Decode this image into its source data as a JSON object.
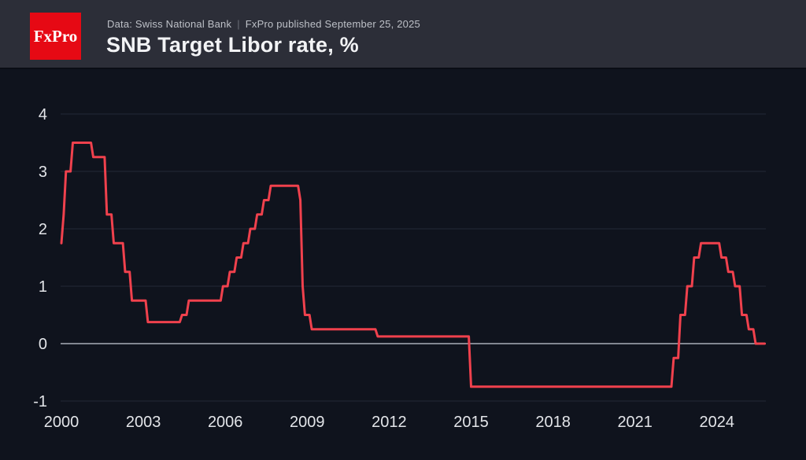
{
  "header": {
    "logo_text": "FxPro",
    "logo_bg": "#e60914",
    "data_source": "Data: Swiss National Bank",
    "separator": "|",
    "published": "FxPro published September 25, 2025"
  },
  "chart_data": {
    "type": "line",
    "title": "SNB Target Libor rate, %",
    "xlabel": "",
    "ylabel": "",
    "unit": "%",
    "x_ticks": [
      2000,
      2003,
      2006,
      2009,
      2012,
      2015,
      2018,
      2021,
      2024
    ],
    "y_ticks": [
      4,
      3,
      2,
      1,
      0,
      -1
    ],
    "xlim": [
      2000,
      2025.83
    ],
    "ylim": [
      -1.4,
      4.5
    ],
    "grid": true,
    "legend_position": "none",
    "line_color": "#f0414d",
    "grid_color": "#232938",
    "zero_line_color": "#a9aeb8",
    "tick_label_color": "#e3e5e9",
    "sampling": "monthly step series; value holds until next change",
    "rate_changes": [
      [
        "2000-01",
        1.75
      ],
      [
        "2000-02",
        2.25
      ],
      [
        "2000-03",
        3.0
      ],
      [
        "2000-06",
        3.5
      ],
      [
        "2001-03",
        3.25
      ],
      [
        "2001-09",
        2.25
      ],
      [
        "2001-12",
        1.75
      ],
      [
        "2002-05",
        1.25
      ],
      [
        "2002-08",
        0.75
      ],
      [
        "2003-03",
        0.375
      ],
      [
        "2004-06",
        0.5
      ],
      [
        "2004-09",
        0.75
      ],
      [
        "2005-12",
        1.0
      ],
      [
        "2006-03",
        1.25
      ],
      [
        "2006-06",
        1.5
      ],
      [
        "2006-09",
        1.75
      ],
      [
        "2006-12",
        2.0
      ],
      [
        "2007-03",
        2.25
      ],
      [
        "2007-06",
        2.5
      ],
      [
        "2007-09",
        2.75
      ],
      [
        "2008-10",
        2.5
      ],
      [
        "2008-11",
        1.0
      ],
      [
        "2008-12",
        0.5
      ],
      [
        "2009-03",
        0.25
      ],
      [
        "2011-08",
        0.125
      ],
      [
        "2015-01",
        -0.75
      ],
      [
        "2022-06",
        -0.25
      ],
      [
        "2022-09",
        0.5
      ],
      [
        "2022-12",
        1.0
      ],
      [
        "2023-03",
        1.5
      ],
      [
        "2023-06",
        1.75
      ],
      [
        "2024-03",
        1.5
      ],
      [
        "2024-06",
        1.25
      ],
      [
        "2024-09",
        1.0
      ],
      [
        "2024-12",
        0.5
      ],
      [
        "2025-03",
        0.25
      ],
      [
        "2025-06",
        0.0
      ]
    ],
    "series_end": "2025-10"
  }
}
